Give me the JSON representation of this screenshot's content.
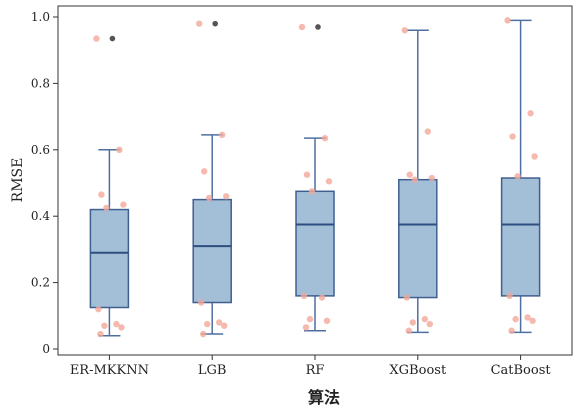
{
  "chart_data": {
    "type": "box",
    "title": "",
    "xlabel": "算法",
    "ylabel": "RMSE",
    "ylim": [
      0,
      1.0
    ],
    "y_ticks": [
      "0",
      "0.2",
      "0.4",
      "0.6",
      "0.8",
      "1.0"
    ],
    "grid": false,
    "categories": [
      "ER-MKKNN",
      "LGB",
      "RF",
      "XGBoost",
      "CatBoost"
    ],
    "boxes": [
      {
        "q1": 0.125,
        "median": 0.29,
        "q3": 0.42,
        "whisker_low": 0.04,
        "whisker_high": 0.6,
        "outliers": [
          0.935
        ]
      },
      {
        "q1": 0.14,
        "median": 0.31,
        "q3": 0.45,
        "whisker_low": 0.045,
        "whisker_high": 0.645,
        "outliers": [
          0.98
        ]
      },
      {
        "q1": 0.16,
        "median": 0.375,
        "q3": 0.475,
        "whisker_low": 0.055,
        "whisker_high": 0.635,
        "outliers": [
          0.97
        ]
      },
      {
        "q1": 0.155,
        "median": 0.375,
        "q3": 0.51,
        "whisker_low": 0.05,
        "whisker_high": 0.96,
        "outliers": []
      },
      {
        "q1": 0.16,
        "median": 0.375,
        "q3": 0.515,
        "whisker_low": 0.05,
        "whisker_high": 0.99,
        "outliers": []
      }
    ],
    "points": [
      [
        0.935,
        0.6,
        0.465,
        0.435,
        0.425,
        0.12,
        0.075,
        0.07,
        0.065,
        0.045
      ],
      [
        0.98,
        0.645,
        0.535,
        0.46,
        0.455,
        0.14,
        0.08,
        0.075,
        0.07,
        0.045
      ],
      [
        0.97,
        0.635,
        0.525,
        0.505,
        0.475,
        0.16,
        0.155,
        0.09,
        0.085,
        0.065
      ],
      [
        0.96,
        0.655,
        0.525,
        0.515,
        0.51,
        0.155,
        0.09,
        0.08,
        0.075,
        0.055
      ],
      [
        0.99,
        0.71,
        0.64,
        0.58,
        0.52,
        0.16,
        0.095,
        0.09,
        0.085,
        0.055
      ]
    ],
    "colors": {
      "box_fill": "#a3bfd8",
      "box_edge": "#3f5f8f",
      "whisker": "#4f6fa0",
      "median": "#2e4e80",
      "point": "#f2a89a",
      "outlier": "#555555"
    }
  }
}
